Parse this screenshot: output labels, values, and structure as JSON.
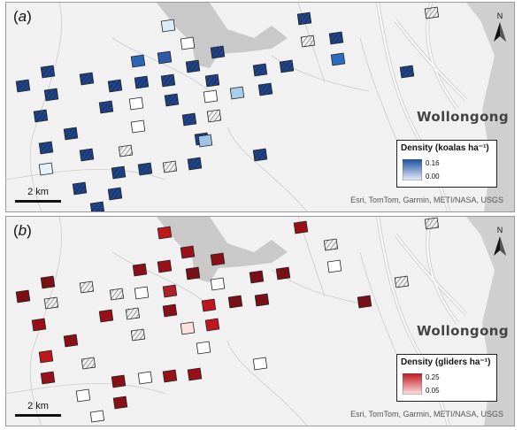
{
  "panels": [
    {
      "id": "a",
      "label": "a",
      "place_label": "Wollongong",
      "legend": {
        "title": "Density (koalas ha⁻¹)",
        "max_label": "0.16",
        "min_label": "0.00",
        "ramp_top": "#1f4fa0",
        "ramp_bottom": "#e6f0fa"
      },
      "scale_label": "2 km",
      "attribution": "Esri, TomTom, Garmin, METI/NASA, USGS",
      "north_label": "N"
    },
    {
      "id": "b",
      "label": "b",
      "place_label": "Wollongong",
      "legend": {
        "title": "Density (gliders ha⁻¹)",
        "max_label": "0.25",
        "min_label": "0.05",
        "ramp_top": "#c0161d",
        "ramp_bottom": "#fde4e4"
      },
      "scale_label": "2 km",
      "attribution": "Esri, TomTom, Garmin, METI/NASA, USGS",
      "north_label": "N"
    }
  ],
  "colors": {
    "land": "#f1f1f1",
    "sea": "#cfcfcf",
    "road": "#ffffff",
    "road_outline": "#cfcfcf",
    "koala_dark": "#1a3a78",
    "koala_mid": "#2a65b8",
    "koala_light": "#a9cdee",
    "glider_dark": "#7a0f16",
    "glider_mid": "#c23039",
    "glider_light": "#f4c9c9",
    "hatch": "#777777",
    "empty": "#ffffff"
  }
}
